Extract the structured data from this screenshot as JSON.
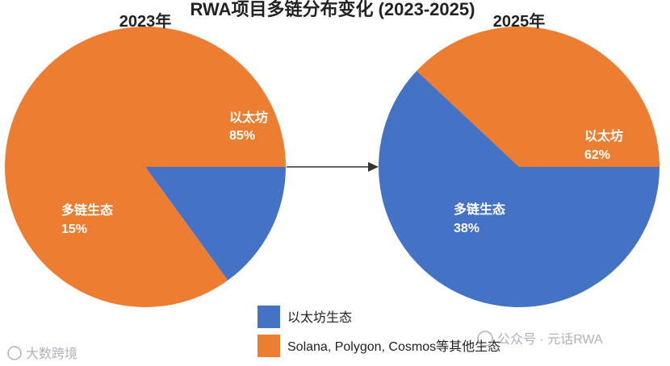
{
  "chart_data": {
    "type": "pie",
    "title": "RWA项目多链分布变化 (2023-2025)",
    "charts": [
      {
        "subtitle": "2023年",
        "slices": [
          {
            "label": "以太坊",
            "value": 85,
            "value_text": "85%",
            "color": "#ED7D31"
          },
          {
            "label": "多链生态",
            "value": 15,
            "value_text": "15%",
            "color": "#4472C4"
          }
        ]
      },
      {
        "subtitle": "2025年",
        "slices": [
          {
            "label": "以太坊",
            "value": 62,
            "value_text": "62%",
            "color": "#4472C4"
          },
          {
            "label": "多链生态",
            "value": 38,
            "value_text": "38%",
            "color": "#ED7D31"
          }
        ]
      }
    ],
    "legend": [
      {
        "label": "以太坊生态",
        "color": "#4472C4"
      },
      {
        "label": "Solana, Polygon, Cosmos等其他生态",
        "color": "#ED7D31"
      }
    ],
    "arrow": true
  },
  "watermarks": {
    "left": "大数跨境",
    "right": "公众号 · 元话RWA"
  }
}
